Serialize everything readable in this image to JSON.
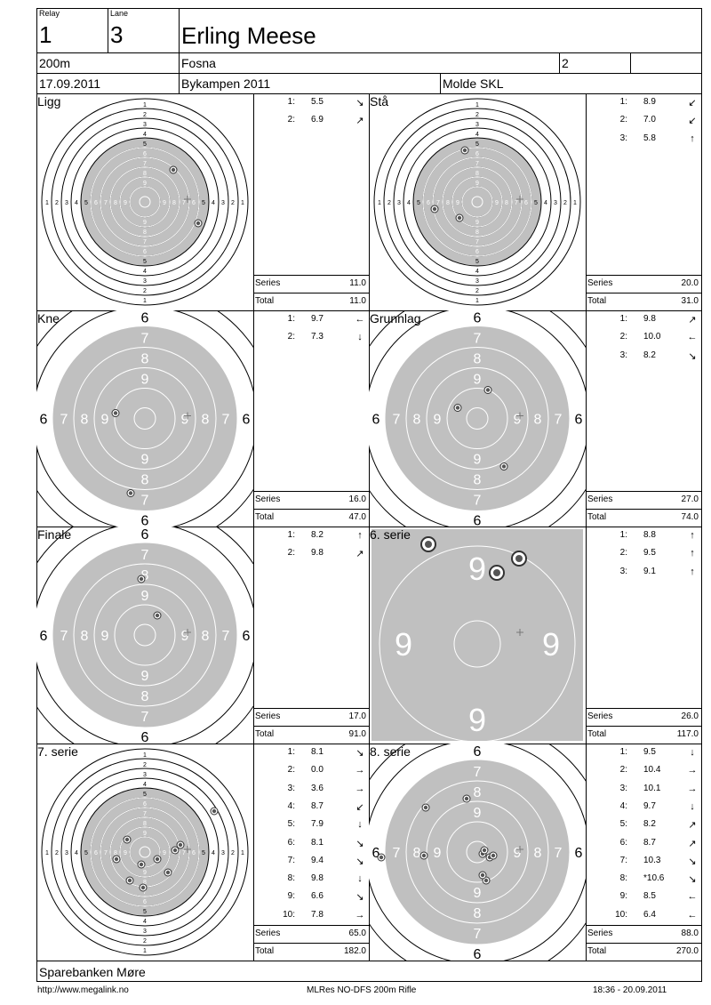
{
  "header": {
    "relay_label": "Relay",
    "relay": "1",
    "lane_label": "Lane",
    "lane": "3",
    "shooter": "Erling Meese",
    "distance": "200m",
    "club": "Fosna",
    "class": "2",
    "date": "17.09.2011",
    "event": "Bykampen 2011",
    "venue": "Molde SKL"
  },
  "labels": {
    "series": "Series",
    "total": "Total"
  },
  "panels": [
    {
      "title": "Ligg",
      "target": "full",
      "shots": [
        {
          "n": "1:",
          "v": "5.5",
          "a": "↘"
        },
        {
          "n": "2:",
          "v": "6.9",
          "a": "↗"
        }
      ],
      "series": "11.0",
      "total": "11.0"
    },
    {
      "title": "Stå",
      "target": "full",
      "shots": [
        {
          "n": "1:",
          "v": "8.9",
          "a": "↙"
        },
        {
          "n": "2:",
          "v": "7.0",
          "a": "↙"
        },
        {
          "n": "3:",
          "v": "5.8",
          "a": "↑"
        }
      ],
      "series": "20.0",
      "total": "31.0"
    },
    {
      "title": "Kne",
      "target": "zoom6",
      "shots": [
        {
          "n": "1:",
          "v": "9.7",
          "a": "←"
        },
        {
          "n": "2:",
          "v": "7.3",
          "a": "↓"
        }
      ],
      "series": "16.0",
      "total": "47.0"
    },
    {
      "title": "Grunnlag",
      "target": "zoom6",
      "shots": [
        {
          "n": "1:",
          "v": "9.8",
          "a": "↗"
        },
        {
          "n": "2:",
          "v": "10.0",
          "a": "←"
        },
        {
          "n": "3:",
          "v": "8.2",
          "a": "↘"
        }
      ],
      "series": "27.0",
      "total": "74.0"
    },
    {
      "title": "Finale",
      "target": "zoom6",
      "shots": [
        {
          "n": "1:",
          "v": "8.2",
          "a": "↑"
        },
        {
          "n": "2:",
          "v": "9.8",
          "a": "↗"
        }
      ],
      "series": "17.0",
      "total": "91.0"
    },
    {
      "title": "6. serie",
      "target": "zoom9",
      "shots": [
        {
          "n": "1:",
          "v": "8.8",
          "a": "↑"
        },
        {
          "n": "2:",
          "v": "9.5",
          "a": "↑"
        },
        {
          "n": "3:",
          "v": "9.1",
          "a": "↑"
        }
      ],
      "series": "26.0",
      "total": "117.0"
    },
    {
      "title": "7. serie",
      "target": "full",
      "shots": [
        {
          "n": "1:",
          "v": "8.1",
          "a": "↘"
        },
        {
          "n": "2:",
          "v": "0.0",
          "a": "→"
        },
        {
          "n": "3:",
          "v": "3.6",
          "a": "→"
        },
        {
          "n": "4:",
          "v": "8.7",
          "a": "↙"
        },
        {
          "n": "5:",
          "v": "7.9",
          "a": "↓"
        },
        {
          "n": "6:",
          "v": "8.1",
          "a": "↘"
        },
        {
          "n": "7:",
          "v": "9.4",
          "a": "↘"
        },
        {
          "n": "8:",
          "v": "9.8",
          "a": "↓"
        },
        {
          "n": "9:",
          "v": "6.6",
          "a": "↘"
        },
        {
          "n": "10:",
          "v": "7.8",
          "a": "→"
        }
      ],
      "series": "65.0",
      "total": "182.0"
    },
    {
      "title": "8. serie",
      "target": "zoom6",
      "shots": [
        {
          "n": "1:",
          "v": "9.5",
          "a": "↓"
        },
        {
          "n": "2:",
          "v": "10.4",
          "a": "→"
        },
        {
          "n": "3:",
          "v": "10.1",
          "a": "→"
        },
        {
          "n": "4:",
          "v": "9.7",
          "a": "↓"
        },
        {
          "n": "5:",
          "v": "8.2",
          "a": "↗"
        },
        {
          "n": "6:",
          "v": "8.7",
          "a": "↗"
        },
        {
          "n": "7:",
          "v": "10.3",
          "a": "↘"
        },
        {
          "n": "8:",
          "v": "*10.6",
          "a": "↘"
        },
        {
          "n": "9:",
          "v": "8.5",
          "a": "←"
        },
        {
          "n": "10:",
          "v": "6.4",
          "a": "←"
        }
      ],
      "series": "88.0",
      "total": "270.0"
    }
  ],
  "sponsor": "Sparebanken Møre",
  "footer": {
    "url": "http://www.megalink.no",
    "software": "MLRes NO-DFS 200m Rifle",
    "printed": "18:36 - 20.09.2011"
  }
}
